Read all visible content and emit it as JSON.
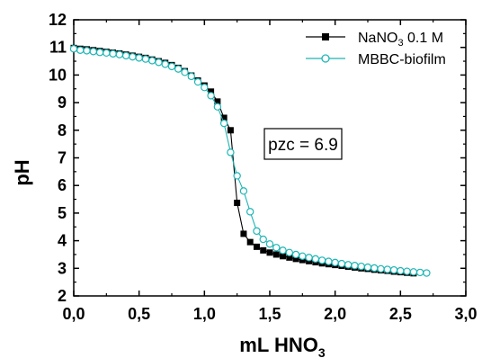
{
  "chart_data": {
    "type": "scatter",
    "title": "",
    "xlabel": {
      "main": "mL HNO",
      "sub": "3"
    },
    "ylabel": "pH",
    "xlim": [
      0,
      3
    ],
    "ylim": [
      2,
      12
    ],
    "x_ticks": [
      "0,0",
      "0,5",
      "1,0",
      "1,5",
      "2,0",
      "2,5",
      "3,0"
    ],
    "y_ticks": [
      "2",
      "3",
      "4",
      "5",
      "6",
      "7",
      "8",
      "9",
      "10",
      "11",
      "12"
    ],
    "grid": false,
    "legend_position": "top-right",
    "annotation": "pzc = 6.9",
    "series": [
      {
        "name": {
          "main": "NaNO",
          "sub": "3",
          "rest": " 0.1 M"
        },
        "color": "#000000",
        "marker": "filled-square",
        "points": [
          [
            0.0,
            10.98
          ],
          [
            0.05,
            10.95
          ],
          [
            0.1,
            10.93
          ],
          [
            0.15,
            10.9
          ],
          [
            0.2,
            10.87
          ],
          [
            0.25,
            10.84
          ],
          [
            0.3,
            10.81
          ],
          [
            0.35,
            10.78
          ],
          [
            0.4,
            10.74
          ],
          [
            0.45,
            10.7
          ],
          [
            0.5,
            10.66
          ],
          [
            0.55,
            10.62
          ],
          [
            0.6,
            10.56
          ],
          [
            0.65,
            10.5
          ],
          [
            0.7,
            10.44
          ],
          [
            0.75,
            10.36
          ],
          [
            0.8,
            10.26
          ],
          [
            0.85,
            10.14
          ],
          [
            0.9,
            9.98
          ],
          [
            0.95,
            9.8
          ],
          [
            1.0,
            9.62
          ],
          [
            1.05,
            9.4
          ],
          [
            1.1,
            9.04
          ],
          [
            1.15,
            8.45
          ],
          [
            1.2,
            8.0
          ],
          [
            1.25,
            5.37
          ],
          [
            1.3,
            4.25
          ],
          [
            1.35,
            3.95
          ],
          [
            1.4,
            3.78
          ],
          [
            1.45,
            3.65
          ],
          [
            1.5,
            3.57
          ],
          [
            1.55,
            3.5
          ],
          [
            1.6,
            3.44
          ],
          [
            1.65,
            3.39
          ],
          [
            1.7,
            3.34
          ],
          [
            1.75,
            3.3
          ],
          [
            1.8,
            3.26
          ],
          [
            1.85,
            3.22
          ],
          [
            1.9,
            3.18
          ],
          [
            1.95,
            3.15
          ],
          [
            2.0,
            3.12
          ],
          [
            2.05,
            3.09
          ],
          [
            2.1,
            3.06
          ],
          [
            2.15,
            3.03
          ],
          [
            2.2,
            3.0
          ],
          [
            2.25,
            2.98
          ],
          [
            2.3,
            2.95
          ],
          [
            2.35,
            2.93
          ],
          [
            2.4,
            2.91
          ],
          [
            2.45,
            2.88
          ],
          [
            2.5,
            2.86
          ],
          [
            2.55,
            2.84
          ],
          [
            2.6,
            2.82
          ]
        ]
      },
      {
        "name": {
          "main": "MBBC-biofilm",
          "sub": "",
          "rest": ""
        },
        "color": "#1fb5b5",
        "marker": "open-circle",
        "points": [
          [
            0.0,
            10.95
          ],
          [
            0.05,
            10.9
          ],
          [
            0.1,
            10.88
          ],
          [
            0.15,
            10.85
          ],
          [
            0.2,
            10.82
          ],
          [
            0.25,
            10.8
          ],
          [
            0.3,
            10.77
          ],
          [
            0.35,
            10.74
          ],
          [
            0.4,
            10.7
          ],
          [
            0.45,
            10.66
          ],
          [
            0.5,
            10.62
          ],
          [
            0.55,
            10.58
          ],
          [
            0.6,
            10.52
          ],
          [
            0.65,
            10.46
          ],
          [
            0.7,
            10.39
          ],
          [
            0.75,
            10.31
          ],
          [
            0.8,
            10.22
          ],
          [
            0.85,
            10.1
          ],
          [
            0.9,
            9.95
          ],
          [
            0.95,
            9.75
          ],
          [
            1.0,
            9.55
          ],
          [
            1.05,
            9.25
          ],
          [
            1.1,
            8.85
          ],
          [
            1.15,
            8.25
          ],
          [
            1.2,
            7.2
          ],
          [
            1.25,
            6.35
          ],
          [
            1.3,
            5.8
          ],
          [
            1.35,
            5.05
          ],
          [
            1.4,
            4.35
          ],
          [
            1.45,
            4.05
          ],
          [
            1.5,
            3.88
          ],
          [
            1.55,
            3.75
          ],
          [
            1.6,
            3.65
          ],
          [
            1.65,
            3.57
          ],
          [
            1.7,
            3.5
          ],
          [
            1.75,
            3.44
          ],
          [
            1.8,
            3.39
          ],
          [
            1.85,
            3.34
          ],
          [
            1.9,
            3.29
          ],
          [
            1.95,
            3.25
          ],
          [
            2.0,
            3.21
          ],
          [
            2.05,
            3.17
          ],
          [
            2.1,
            3.13
          ],
          [
            2.15,
            3.1
          ],
          [
            2.2,
            3.07
          ],
          [
            2.25,
            3.04
          ],
          [
            2.3,
            3.01
          ],
          [
            2.35,
            2.98
          ],
          [
            2.4,
            2.96
          ],
          [
            2.45,
            2.94
          ],
          [
            2.5,
            2.91
          ],
          [
            2.55,
            2.89
          ],
          [
            2.6,
            2.87
          ],
          [
            2.65,
            2.85
          ],
          [
            2.7,
            2.83
          ]
        ]
      }
    ]
  }
}
